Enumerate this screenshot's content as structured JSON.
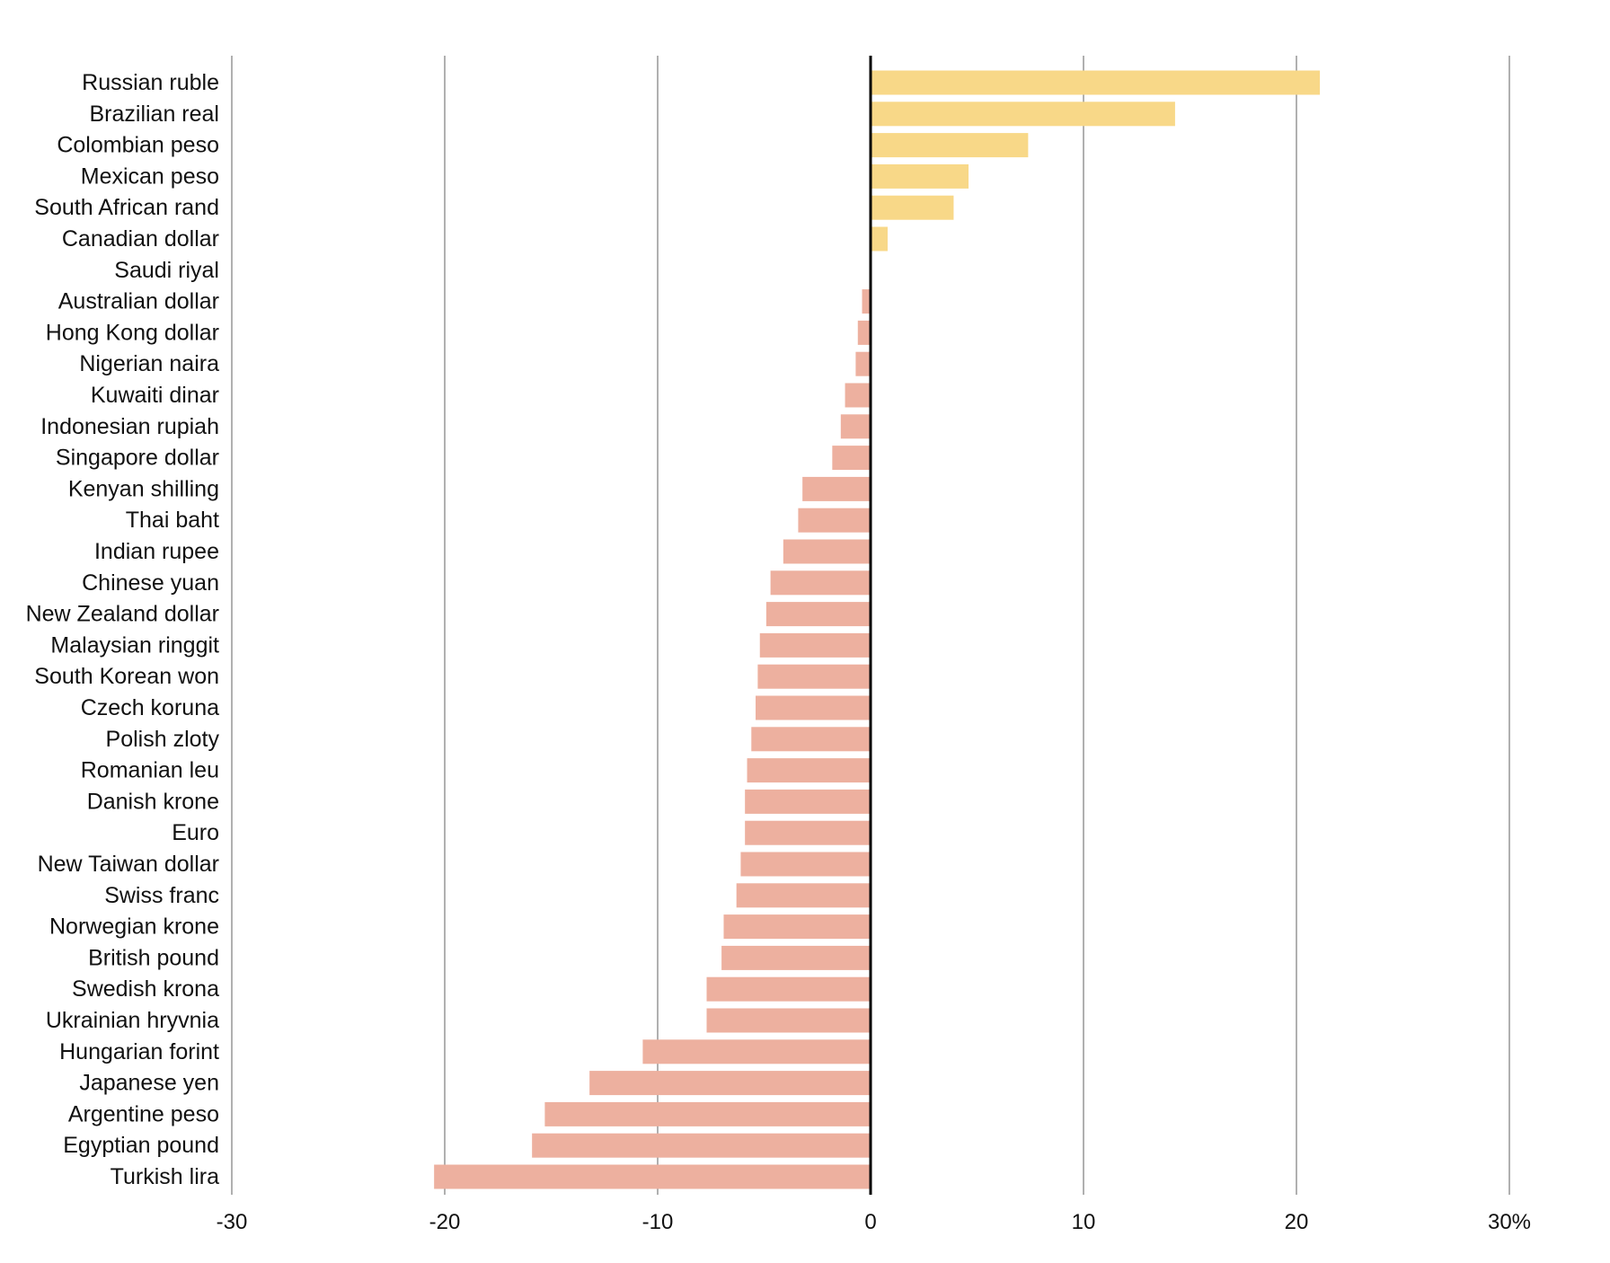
{
  "chart_data": {
    "type": "bar",
    "orientation": "horizontal",
    "categories": [
      "Russian ruble",
      "Brazilian real",
      "Colombian peso",
      "Mexican peso",
      "South African rand",
      "Canadian dollar",
      "Saudi riyal",
      "Australian dollar",
      "Hong Kong dollar",
      "Nigerian naira",
      "Kuwaiti dinar",
      "Indonesian rupiah",
      "Singapore dollar",
      "Kenyan shilling",
      "Thai baht",
      "Indian rupee",
      "Chinese yuan",
      "New Zealand dollar",
      "Malaysian ringgit",
      "South Korean won",
      "Czech koruna",
      "Polish zloty",
      "Romanian leu",
      "Danish krone",
      "Euro",
      "New Taiwan dollar",
      "Swiss franc",
      "Norwegian krone",
      "British pound",
      "Swedish krona",
      "Ukrainian hryvnia",
      "Hungarian forint",
      "Japanese yen",
      "Argentine peso",
      "Egyptian pound",
      "Turkish lira"
    ],
    "values": [
      21.1,
      14.3,
      7.4,
      4.6,
      3.9,
      0.8,
      0.0,
      -0.4,
      -0.6,
      -0.7,
      -1.2,
      -1.4,
      -1.8,
      -3.2,
      -3.4,
      -4.1,
      -4.7,
      -4.9,
      -5.2,
      -5.3,
      -5.4,
      -5.6,
      -5.8,
      -5.9,
      -5.9,
      -6.1,
      -6.3,
      -6.9,
      -7.0,
      -7.7,
      -7.7,
      -10.7,
      -13.2,
      -15.3,
      -15.9,
      -20.5
    ],
    "xlim": [
      -30,
      30
    ],
    "xticks": [
      -30,
      -20,
      -10,
      0,
      10,
      20,
      30
    ],
    "xtick_labels": [
      "-30",
      "-20",
      "-10",
      "0",
      "10",
      "20",
      "30%"
    ],
    "title": "",
    "xlabel": "",
    "ylabel": "",
    "grid": true,
    "legend": "none",
    "colors": {
      "positive": "#f8d888",
      "negative": "#edb09f",
      "grid": "#b0b0b0",
      "zero_line": "#000000",
      "text": "#111111"
    }
  }
}
